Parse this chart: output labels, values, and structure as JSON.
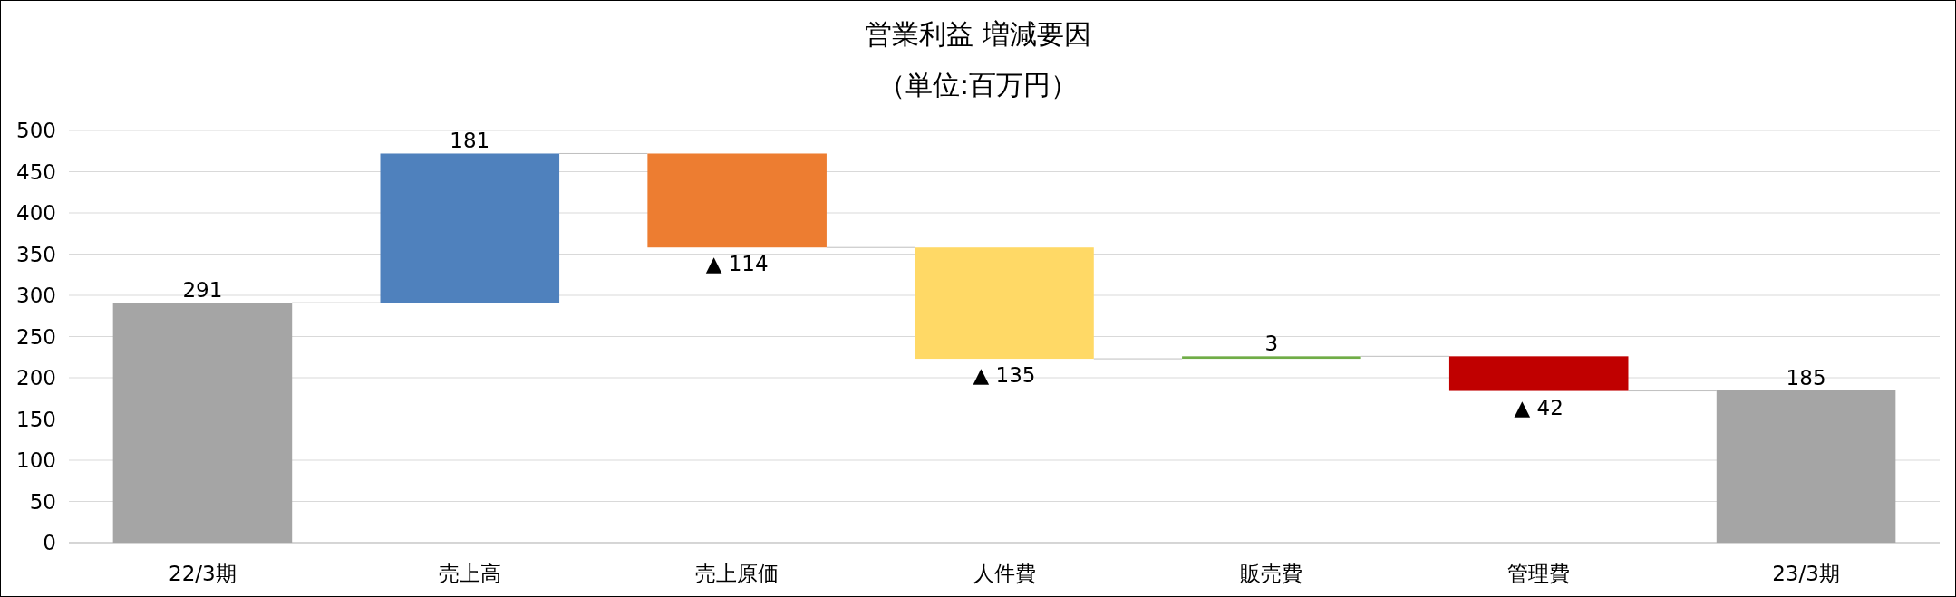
{
  "chart_data": {
    "type": "bar",
    "title": "営業利益  増減要因",
    "subtitle": "（単位:百万円）",
    "categories": [
      "22/3期",
      "売上高",
      "売上原価",
      "人件費",
      "販売費",
      "管理費",
      "23/3期"
    ],
    "values": [
      291,
      181,
      -114,
      -135,
      3,
      -42,
      185
    ],
    "base": [
      0,
      291,
      472,
      358,
      223,
      226,
      0
    ],
    "colors": [
      "#a5a5a5",
      "#4f81bd",
      "#ed7d31",
      "#ffd966",
      "#70ad47",
      "#c00000",
      "#a5a5a5"
    ],
    "value_labels": [
      "291",
      "181",
      "▲ 114",
      "▲ 135",
      "3",
      "▲ 42",
      "185"
    ],
    "ylim": [
      0,
      500
    ],
    "yticks": [
      0,
      50,
      100,
      150,
      200,
      250,
      300,
      350,
      400,
      450,
      500
    ],
    "grid": "y"
  }
}
